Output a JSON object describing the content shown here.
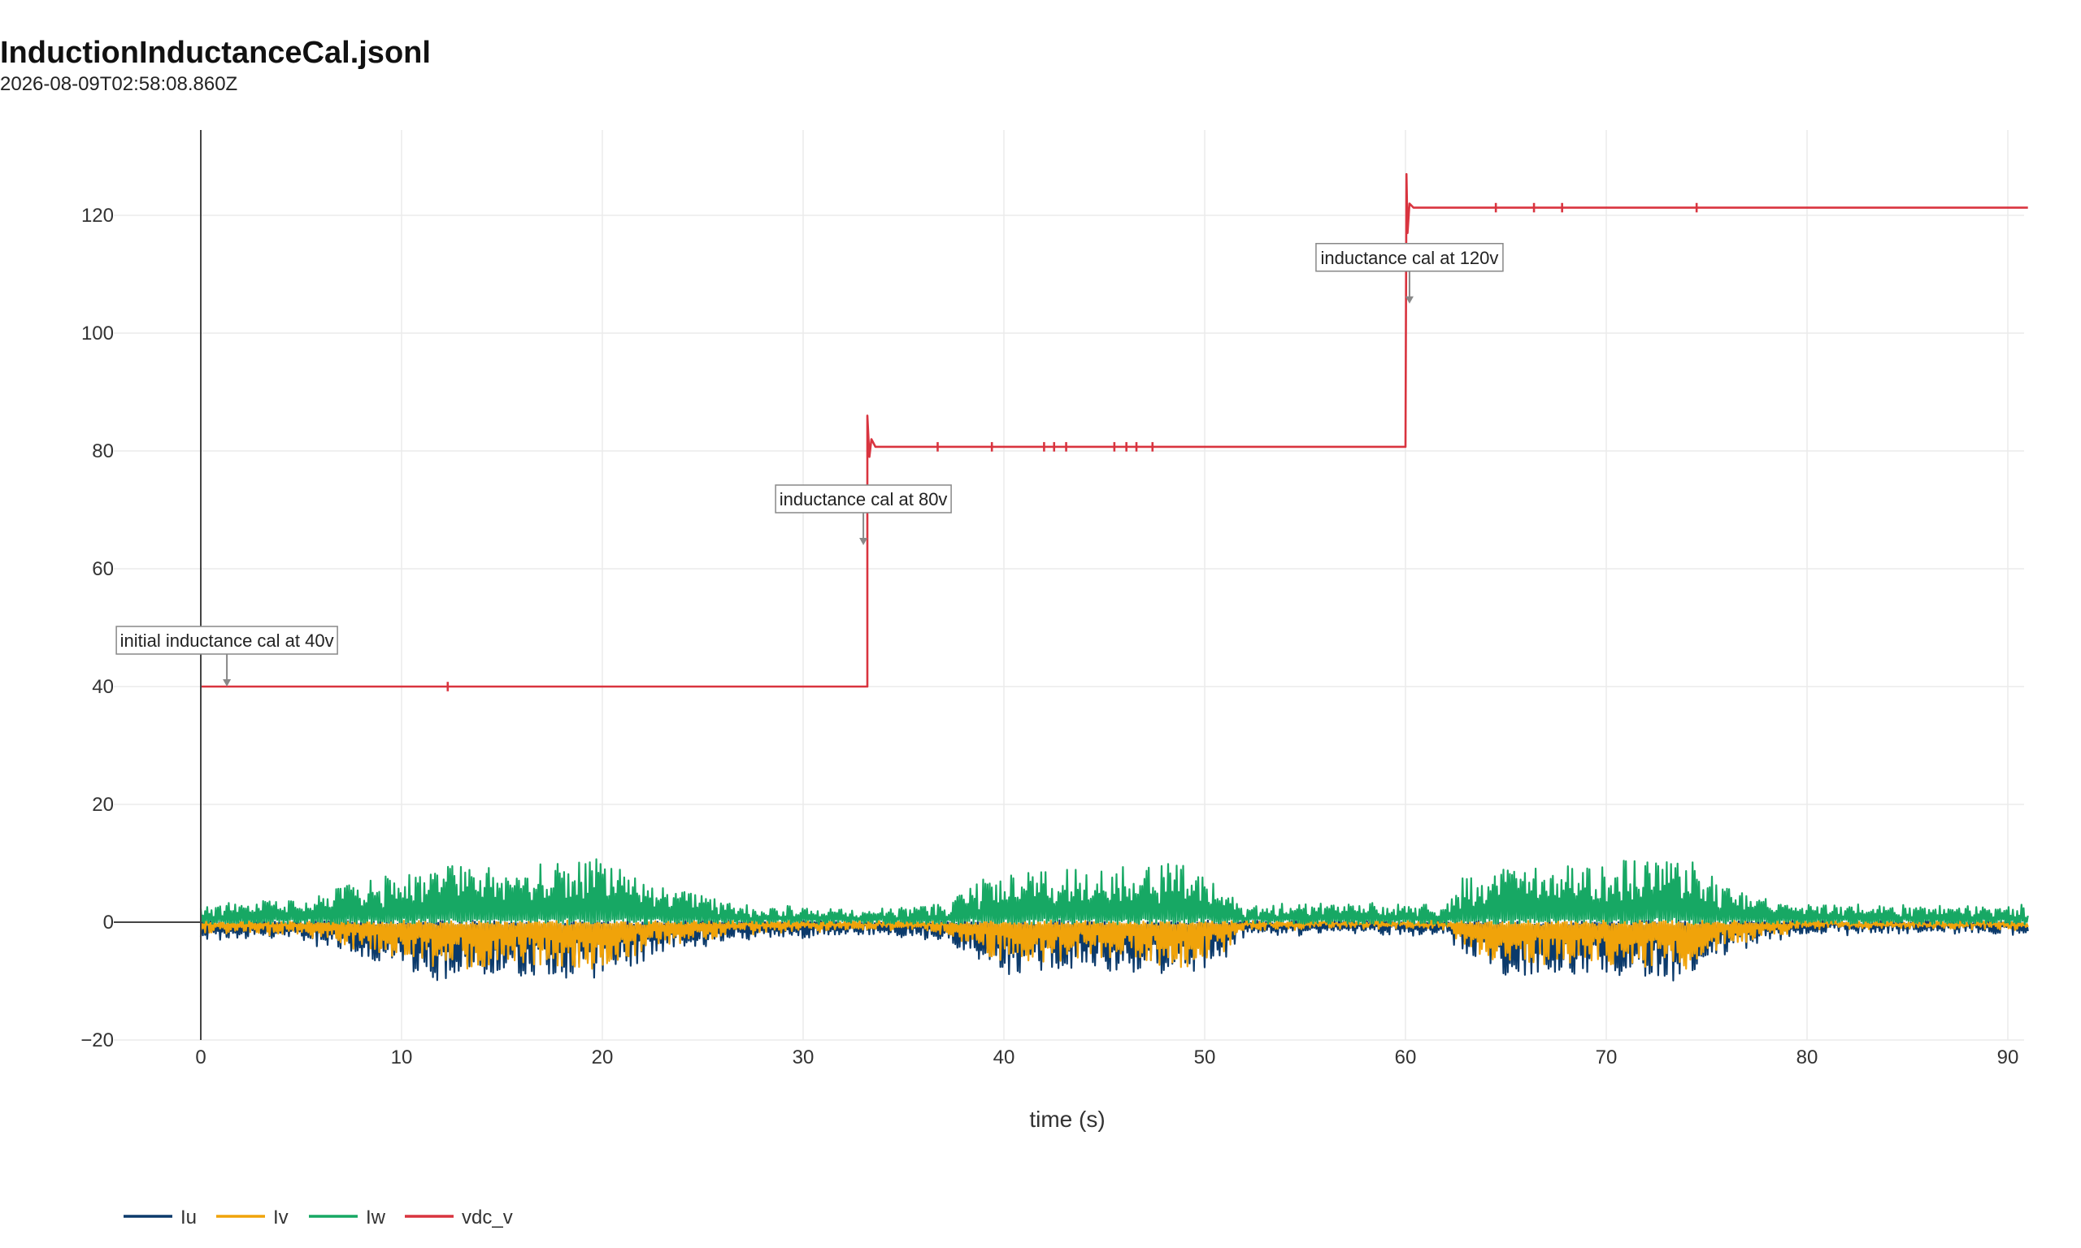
{
  "header": {
    "title": "InductionInductanceCal.jsonl",
    "subtitle": "2026-08-09T02:58:08.860Z"
  },
  "chart_data": {
    "type": "line",
    "xlabel": "time (s)",
    "ylabel": "",
    "xlim": [
      -4,
      91
    ],
    "ylim": [
      -20,
      135
    ],
    "xticks": [
      0,
      10,
      20,
      30,
      40,
      50,
      60,
      70,
      80,
      90
    ],
    "xtick_labels": [
      "0",
      "10",
      "20",
      "30",
      "40",
      "50",
      "60",
      "70",
      "80",
      "90"
    ],
    "yticks": [
      -20,
      0,
      20,
      40,
      60,
      80,
      100,
      120
    ],
    "ytick_labels": [
      "−20",
      "0",
      "20",
      "40",
      "60",
      "80",
      "100",
      "120"
    ],
    "grid": true,
    "legend_position": "bottom-left",
    "series": [
      {
        "name": "Iu",
        "color": "#0b3a6b",
        "pattern": "noisy current near zero, negative-biased",
        "envelope": [
          [
            0,
            -3
          ],
          [
            5,
            -3
          ],
          [
            8,
            -6
          ],
          [
            12,
            -10
          ],
          [
            16,
            -9
          ],
          [
            20,
            -10
          ],
          [
            23,
            -5
          ],
          [
            27,
            -3
          ],
          [
            33,
            -2
          ],
          [
            37,
            -3
          ],
          [
            40,
            -9
          ],
          [
            45,
            -8
          ],
          [
            49,
            -10
          ],
          [
            51,
            -6
          ],
          [
            52,
            -2
          ],
          [
            62,
            -2
          ],
          [
            63,
            -6
          ],
          [
            65,
            -9
          ],
          [
            70,
            -9
          ],
          [
            74,
            -10
          ],
          [
            76,
            -5
          ],
          [
            80,
            -2
          ],
          [
            91,
            -2
          ]
        ]
      },
      {
        "name": "Iv",
        "color": "#f0a30a",
        "pattern": "noisy current near zero, slightly negative",
        "envelope": [
          [
            0,
            -2
          ],
          [
            5,
            -2
          ],
          [
            8,
            -5
          ],
          [
            12,
            -8
          ],
          [
            16,
            -7
          ],
          [
            20,
            -8
          ],
          [
            23,
            -4
          ],
          [
            27,
            -2
          ],
          [
            33,
            -1
          ],
          [
            37,
            -2
          ],
          [
            40,
            -7
          ],
          [
            45,
            -6
          ],
          [
            49,
            -8
          ],
          [
            51,
            -5
          ],
          [
            52,
            -1
          ],
          [
            62,
            -1
          ],
          [
            63,
            -5
          ],
          [
            65,
            -7
          ],
          [
            70,
            -7
          ],
          [
            74,
            -8
          ],
          [
            76,
            -4
          ],
          [
            80,
            -1
          ],
          [
            91,
            -1
          ]
        ]
      },
      {
        "name": "Iw",
        "color": "#17a864",
        "pattern": "noisy current near zero, positive-biased",
        "envelope": [
          [
            0,
            3
          ],
          [
            5,
            4
          ],
          [
            8,
            7
          ],
          [
            12,
            10
          ],
          [
            16,
            9
          ],
          [
            20,
            11
          ],
          [
            23,
            6
          ],
          [
            27,
            3
          ],
          [
            33,
            2
          ],
          [
            37,
            3
          ],
          [
            40,
            9
          ],
          [
            45,
            9
          ],
          [
            49,
            10
          ],
          [
            51,
            6
          ],
          [
            52,
            3
          ],
          [
            62,
            3
          ],
          [
            63,
            8
          ],
          [
            65,
            9
          ],
          [
            70,
            10
          ],
          [
            74,
            11
          ],
          [
            76,
            6
          ],
          [
            80,
            3
          ],
          [
            91,
            3
          ]
        ]
      },
      {
        "name": "vdc_v",
        "color": "#d9343f",
        "pattern": "DC bus voltage steps",
        "x": [
          0,
          33.2,
          33.2,
          33.3,
          33.4,
          33.6,
          60.0,
          60.05,
          60.1,
          60.2,
          60.4,
          91
        ],
        "y": [
          40,
          40,
          86,
          79,
          82,
          80.7,
          80.7,
          127,
          117,
          122,
          121.3,
          121.3
        ]
      }
    ],
    "annotations": [
      {
        "text": "initial inductance cal at 40v",
        "x": 1.3,
        "y": 40
      },
      {
        "text": "inductance cal at 80v",
        "x": 33.0,
        "y": 64
      },
      {
        "text": "inductance cal at 120v",
        "x": 60.2,
        "y": 105
      }
    ]
  }
}
